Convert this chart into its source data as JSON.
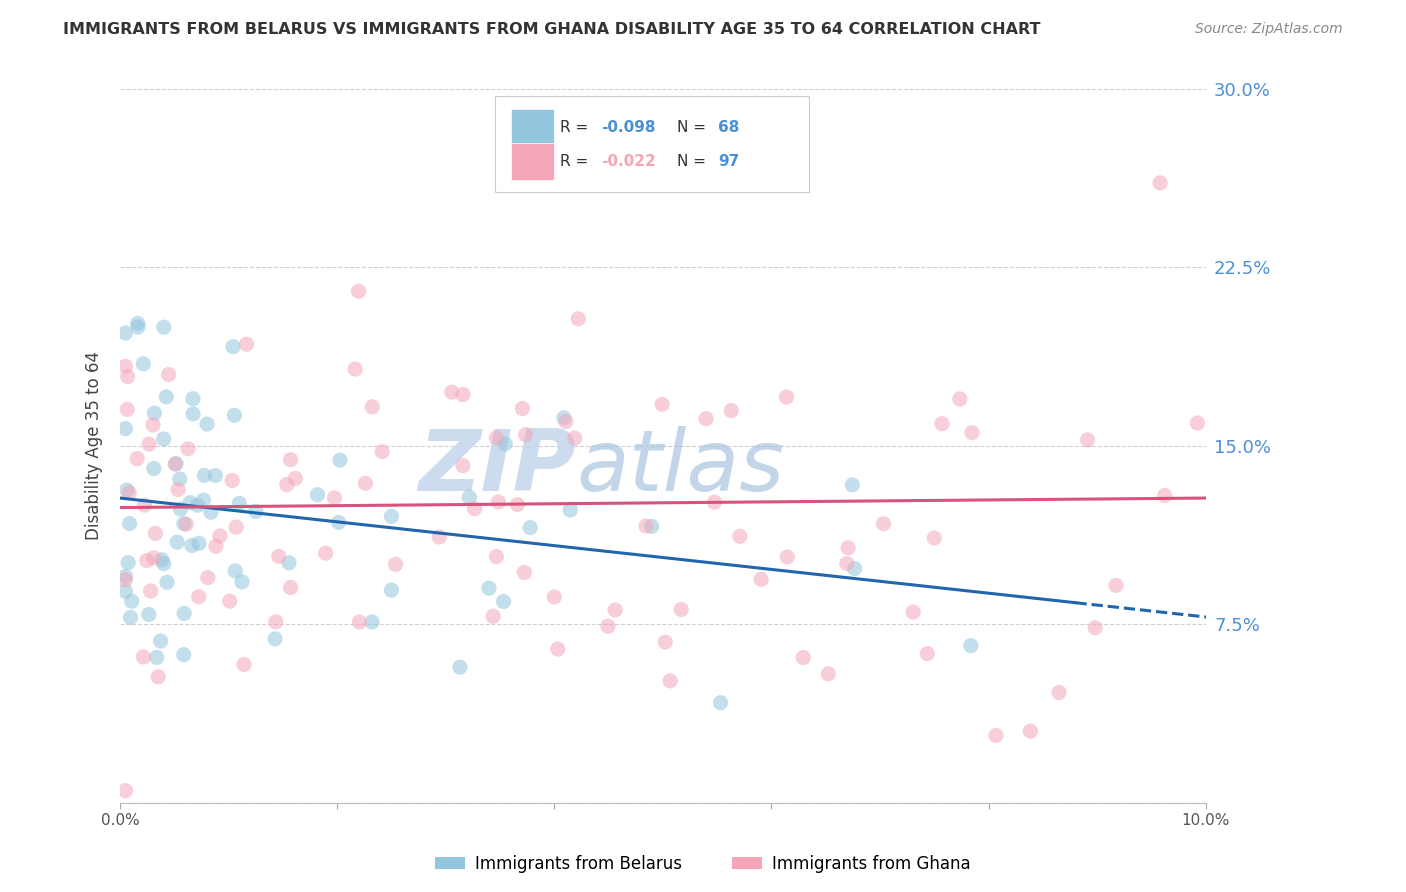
{
  "title": "IMMIGRANTS FROM BELARUS VS IMMIGRANTS FROM GHANA DISABILITY AGE 35 TO 64 CORRELATION CHART",
  "source": "Source: ZipAtlas.com",
  "ylabel": "Disability Age 35 to 64",
  "legend_labels": [
    "Immigrants from Belarus",
    "Immigrants from Ghana"
  ],
  "legend_r": [
    "R = ",
    "-0.098",
    "   N = ",
    "68"
  ],
  "legend_r2": [
    "R = ",
    "-0.022",
    "   N = ",
    "97"
  ],
  "blue_color": "#92c5de",
  "pink_color": "#f4a6b8",
  "trend_blue": "#2166ac",
  "trend_pink": "#d6537a",
  "axis_label_color": "#4a90d9",
  "xlim": [
    0.0,
    0.1
  ],
  "ylim": [
    0.0,
    0.3
  ],
  "yticks": [
    0.075,
    0.15,
    0.225,
    0.3
  ],
  "ytick_labels": [
    "7.5%",
    "15.0%",
    "22.5%",
    "30.0%"
  ],
  "xticks": [
    0.0,
    0.02,
    0.04,
    0.06,
    0.08,
    0.1
  ],
  "xtick_labels": [
    "0.0%",
    "",
    "",
    "",
    "",
    "10.0%"
  ],
  "watermark_zip": "ZIP",
  "watermark_atlas": "atlas",
  "background_color": "#ffffff",
  "grid_color": "#d0d0d0",
  "title_color": "#333333",
  "source_color": "#888888",
  "scatter_size": 120,
  "scatter_alpha": 0.55
}
